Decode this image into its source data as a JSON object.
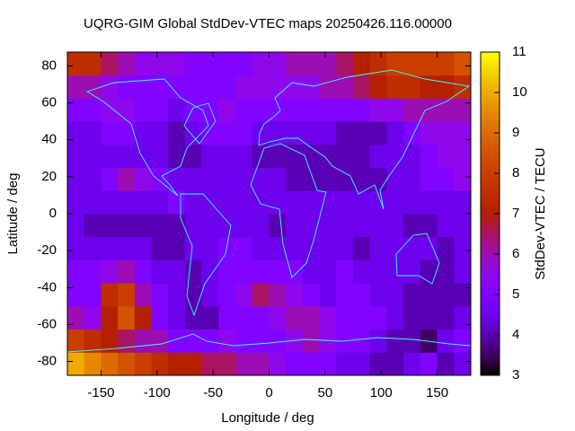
{
  "chart_data": {
    "type": "heatmap",
    "title": "UQRG-GIM Global StdDev-VTEC maps 20250426.116.00000",
    "xlabel": "Longitude / deg",
    "ylabel": "Latitude / deg",
    "zlabel": "StdDev-VTEC / TECU",
    "xlim": [
      -180,
      180
    ],
    "ylim": [
      -87.5,
      87.5
    ],
    "xticks": [
      -150,
      -100,
      -50,
      0,
      50,
      100,
      150
    ],
    "yticks": [
      -80,
      -60,
      -40,
      -20,
      0,
      20,
      40,
      60,
      80
    ],
    "zlim": [
      3,
      11
    ],
    "zticks": [
      3,
      4,
      5,
      6,
      7,
      8,
      9,
      10,
      11
    ],
    "colormap": "gnuplot",
    "xbins": [
      -180,
      -165,
      -150,
      -135,
      -120,
      -105,
      -90,
      -75,
      -60,
      -45,
      -30,
      -15,
      0,
      15,
      30,
      45,
      60,
      75,
      90,
      105,
      120,
      135,
      150,
      165,
      180
    ],
    "ybins": [
      -87.5,
      -75,
      -62.5,
      -50,
      -37.5,
      -25,
      -12.5,
      0,
      12.5,
      25,
      37.5,
      50,
      62.5,
      75,
      87.5
    ],
    "z": [
      [
        10,
        9.5,
        9,
        8.5,
        8,
        7.5,
        7,
        7,
        6.5,
        6.5,
        6,
        6,
        5.5,
        5,
        5,
        5,
        4.5,
        4.5,
        4,
        4,
        4.5,
        5,
        4,
        4.5
      ],
      [
        8,
        7.5,
        7,
        6.5,
        6,
        6,
        5,
        5,
        5,
        5.5,
        5,
        5,
        5,
        5.5,
        6,
        5.5,
        5,
        5,
        4.5,
        4,
        4,
        3.5,
        4.5,
        5
      ],
      [
        6,
        5.5,
        7,
        8.5,
        7,
        5,
        4.5,
        4,
        4,
        5,
        5,
        5,
        5.5,
        6,
        6,
        5.5,
        5,
        5,
        5,
        4.5,
        4,
        4,
        4,
        4.5
      ],
      [
        5,
        5,
        7.5,
        8,
        6,
        5,
        4.5,
        4,
        4.5,
        5,
        5.5,
        6.5,
        6,
        5.5,
        5,
        4.5,
        5,
        5,
        4.5,
        4.5,
        4,
        4,
        4,
        4
      ],
      [
        5,
        5,
        5.5,
        6,
        5,
        4.5,
        4.5,
        4,
        4.5,
        5,
        5,
        5,
        5,
        5,
        4.5,
        4.5,
        5,
        4.5,
        4.5,
        4.5,
        4.5,
        4,
        4,
        4.5
      ],
      [
        4.5,
        4.5,
        4.5,
        4.5,
        4.5,
        4,
        4,
        4.5,
        4.5,
        5,
        5,
        4.5,
        4.5,
        4.5,
        4.5,
        4.5,
        4.5,
        4,
        4.5,
        4.5,
        4.5,
        4.5,
        4,
        4.5
      ],
      [
        4.5,
        4,
        4,
        4,
        4,
        4,
        4,
        4.5,
        4.5,
        4.5,
        4.5,
        4.5,
        4,
        4.5,
        4.5,
        4.5,
        4.5,
        4.5,
        4.5,
        4.5,
        4,
        4,
        4.5,
        4.5
      ],
      [
        4.5,
        4.5,
        4.5,
        4.5,
        4.5,
        4.5,
        5,
        4.5,
        4.5,
        4.5,
        4.5,
        4.5,
        4.5,
        4.5,
        4.5,
        4.5,
        4.5,
        4.5,
        4.5,
        4.5,
        4.5,
        4.5,
        4.5,
        4.5
      ],
      [
        4.5,
        4.5,
        5,
        6,
        5.5,
        5,
        4.5,
        4.5,
        4.5,
        4.5,
        4.5,
        4.5,
        4.5,
        4,
        4,
        4,
        4,
        4,
        4,
        4.5,
        4.5,
        5,
        5,
        5.5
      ],
      [
        4.5,
        4.5,
        4.5,
        4.5,
        4.5,
        4.5,
        4,
        4,
        4.5,
        4.5,
        4.5,
        4,
        4,
        4,
        4,
        4,
        4,
        4,
        4.5,
        4.5,
        4.5,
        5,
        5.5,
        5.5
      ],
      [
        4.5,
        4.5,
        5,
        5,
        4.5,
        4.5,
        4,
        4.5,
        5,
        5,
        5,
        4.5,
        4.5,
        4.5,
        4.5,
        4.5,
        4,
        4,
        4,
        4.5,
        5,
        5.5,
        5.5,
        5.5
      ],
      [
        5,
        5,
        5.5,
        5.5,
        5,
        5,
        4.5,
        5,
        5,
        5.5,
        5,
        5,
        5,
        5,
        5,
        5,
        5,
        5,
        5.5,
        5.5,
        6,
        6,
        6,
        6
      ],
      [
        6,
        6,
        5.5,
        5,
        5,
        5,
        5,
        5,
        5,
        5,
        5.5,
        5.5,
        5.5,
        5.5,
        5.5,
        6,
        6,
        6.5,
        7,
        7.5,
        7.5,
        7,
        7,
        7.5
      ],
      [
        7.5,
        7.5,
        6.5,
        6,
        5.5,
        5.5,
        5.5,
        5,
        5,
        5,
        5,
        5.5,
        5.5,
        6,
        6,
        6,
        6.5,
        7,
        7.5,
        8,
        8,
        8,
        8,
        8.5
      ]
    ]
  }
}
